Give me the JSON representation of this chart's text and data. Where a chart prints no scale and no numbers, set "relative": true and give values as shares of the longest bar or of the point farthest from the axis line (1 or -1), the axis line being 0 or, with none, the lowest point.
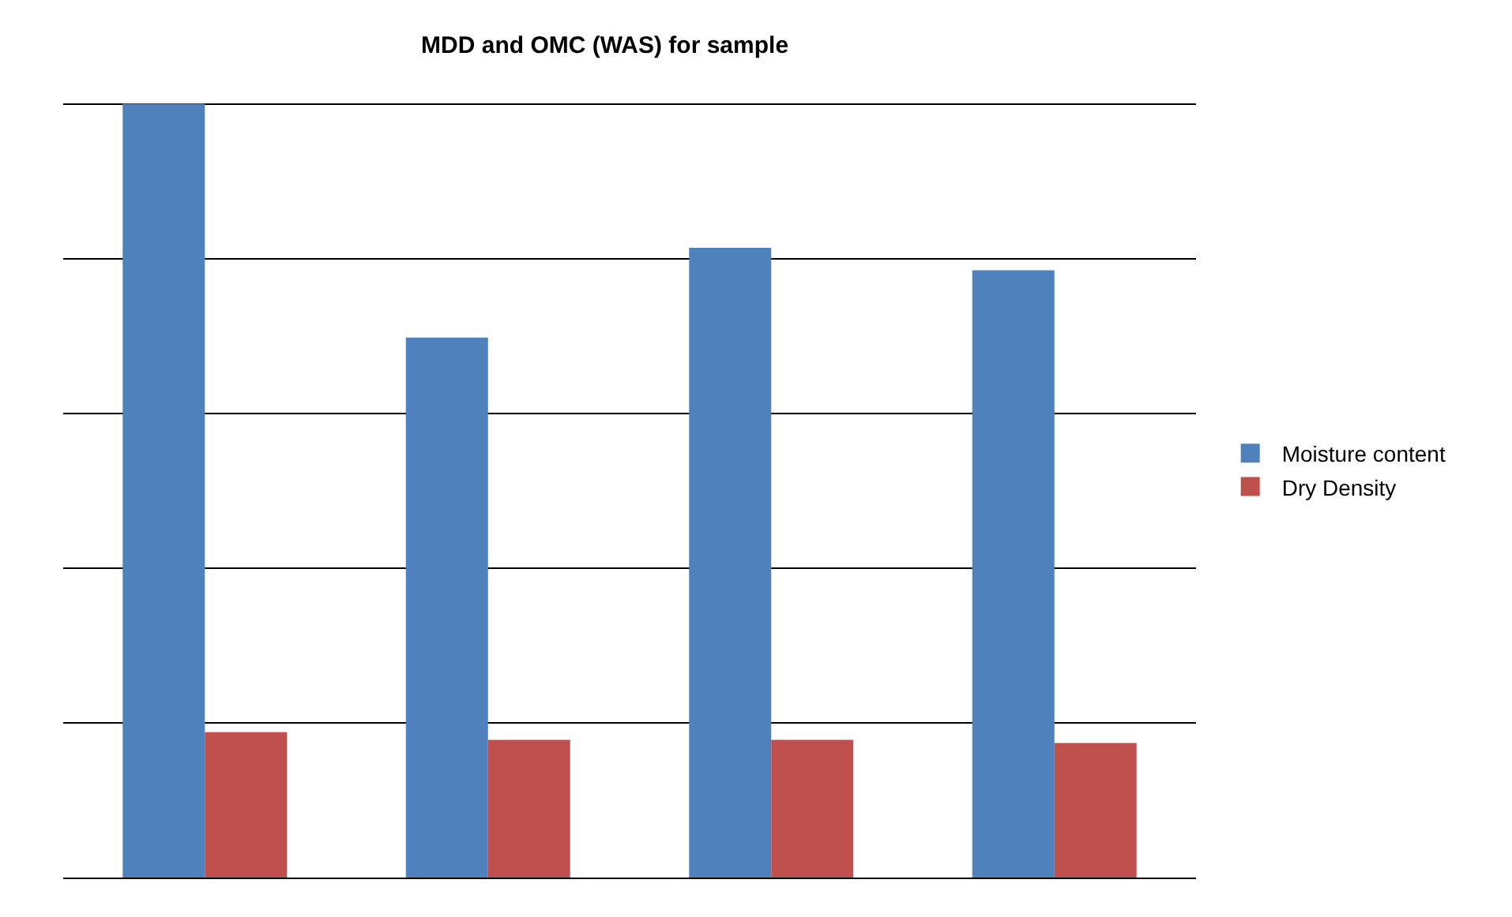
{
  "chart_data": {
    "type": "bar",
    "title": "MDD and OMC (WAS) for sample",
    "relative": true,
    "categories": [
      null,
      null,
      null,
      null
    ],
    "series": [
      {
        "name": "Moisture content",
        "color": "#4f81bd",
        "values": [
          1,
          0.698,
          0.814,
          0.785
        ]
      },
      {
        "name": "Dry Density",
        "color": "#c0504d",
        "values": [
          0.188,
          0.178,
          0.178,
          0.174
        ]
      }
    ],
    "grid": "y",
    "legend": "right"
  }
}
